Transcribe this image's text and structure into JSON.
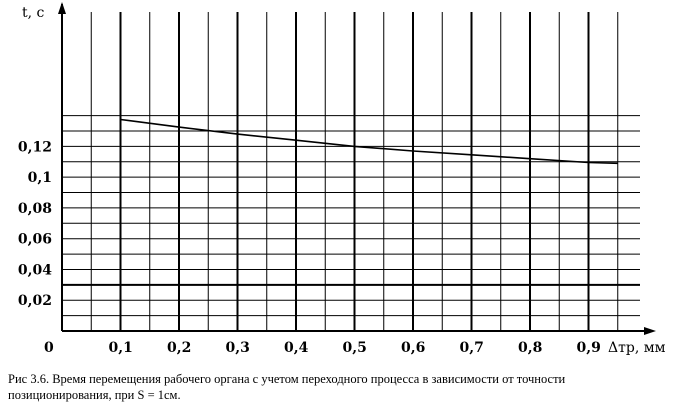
{
  "chart_data": {
    "type": "line",
    "xlabel": "Δтр, мм",
    "ylabel": "t, с",
    "origin_label": "0",
    "xlim": [
      0,
      0.95
    ],
    "ylim": [
      0,
      0.14
    ],
    "x_ticks": [
      0.1,
      0.2,
      0.3,
      0.4,
      0.5,
      0.6,
      0.7,
      0.8,
      0.9
    ],
    "x_tick_labels": [
      "0,1",
      "0,2",
      "0,3",
      "0,4",
      "0,5",
      "0,6",
      "0,7",
      "0,8",
      "0,9"
    ],
    "y_ticks": [
      0.02,
      0.04,
      0.06,
      0.08,
      0.1,
      0.12
    ],
    "y_tick_labels": [
      "0,02",
      "0,04",
      "0,06",
      "0,08",
      "0,1",
      "0,12"
    ],
    "grid": true,
    "series": [
      {
        "x": [
          0.1,
          0.2,
          0.3,
          0.4,
          0.5,
          0.6,
          0.7,
          0.8,
          0.9,
          0.95
        ],
        "values": [
          0.1375,
          0.1325,
          0.128,
          0.124,
          0.12,
          0.117,
          0.1145,
          0.112,
          0.1095,
          0.109
        ]
      }
    ]
  },
  "caption": "Рис 3.6. Время перемещения рабочего органа с учетом переходного процесса в зависимости от точности позиционирования, при S = 1см."
}
